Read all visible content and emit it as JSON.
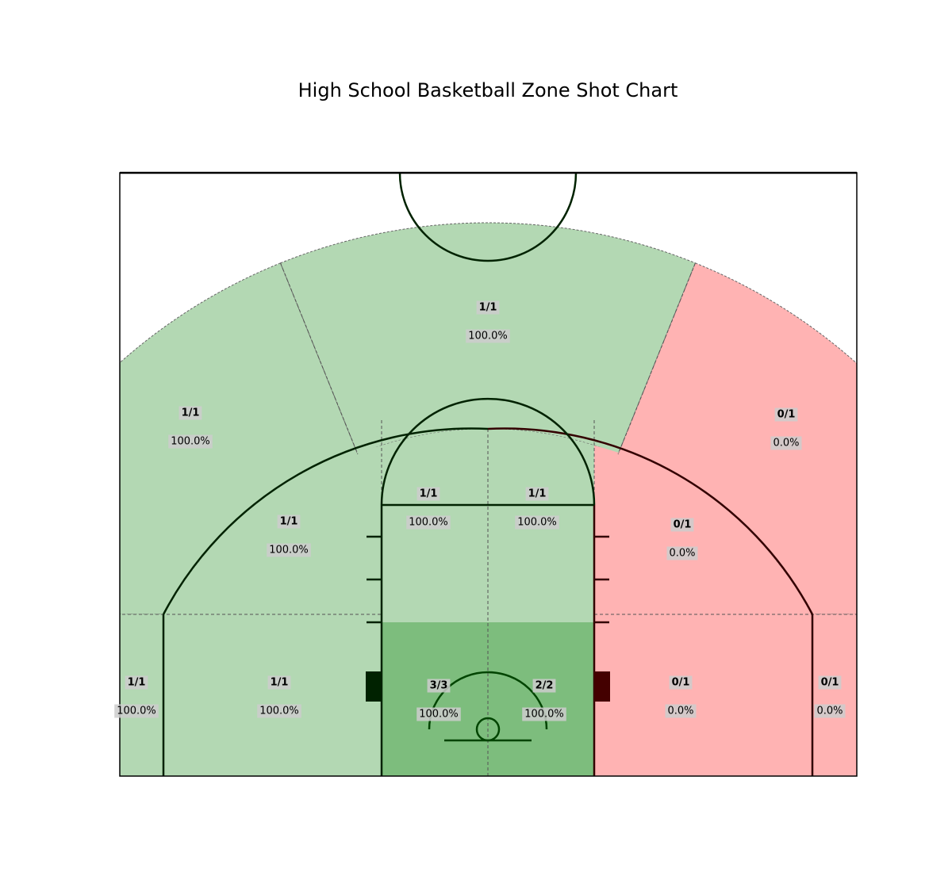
{
  "chart_data": {
    "type": "zone shot chart",
    "title": "High School Basketball Zone Shot Chart",
    "colors": {
      "made_all": "#b3d8b3",
      "made_all_paint": "#7dbd7d",
      "missed_all": "#ffb3b3",
      "court_line_made": "#002200",
      "court_line_missed": "#330000",
      "lane_block_made": "#002200",
      "lane_block_missed": "#440000"
    },
    "zones": [
      {
        "id": "three-left-wing",
        "made": 1,
        "attempts": 1,
        "count_label": "1/1",
        "pct_label": "100.0%"
      },
      {
        "id": "three-top",
        "made": 1,
        "attempts": 1,
        "count_label": "1/1",
        "pct_label": "100.0%"
      },
      {
        "id": "three-right-wing",
        "made": 0,
        "attempts": 1,
        "count_label": "0/1",
        "pct_label": "0.0%"
      },
      {
        "id": "mid-left-wing",
        "made": 1,
        "attempts": 1,
        "count_label": "1/1",
        "pct_label": "100.0%"
      },
      {
        "id": "elbow-left",
        "made": 1,
        "attempts": 1,
        "count_label": "1/1",
        "pct_label": "100.0%"
      },
      {
        "id": "elbow-right",
        "made": 1,
        "attempts": 1,
        "count_label": "1/1",
        "pct_label": "100.0%"
      },
      {
        "id": "mid-right-wing",
        "made": 0,
        "attempts": 1,
        "count_label": "0/1",
        "pct_label": "0.0%"
      },
      {
        "id": "corner-three-left",
        "made": 1,
        "attempts": 1,
        "count_label": "1/1",
        "pct_label": "100.0%"
      },
      {
        "id": "baseline-mid-left",
        "made": 1,
        "attempts": 1,
        "count_label": "1/1",
        "pct_label": "100.0%"
      },
      {
        "id": "paint-left",
        "made": 3,
        "attempts": 3,
        "count_label": "3/3",
        "pct_label": "100.0%"
      },
      {
        "id": "paint-right",
        "made": 2,
        "attempts": 2,
        "count_label": "2/2",
        "pct_label": "100.0%"
      },
      {
        "id": "baseline-mid-right",
        "made": 0,
        "attempts": 1,
        "count_label": "0/1",
        "pct_label": "0.0%"
      },
      {
        "id": "corner-three-right",
        "made": 0,
        "attempts": 1,
        "count_label": "0/1",
        "pct_label": "0.0%"
      }
    ]
  }
}
